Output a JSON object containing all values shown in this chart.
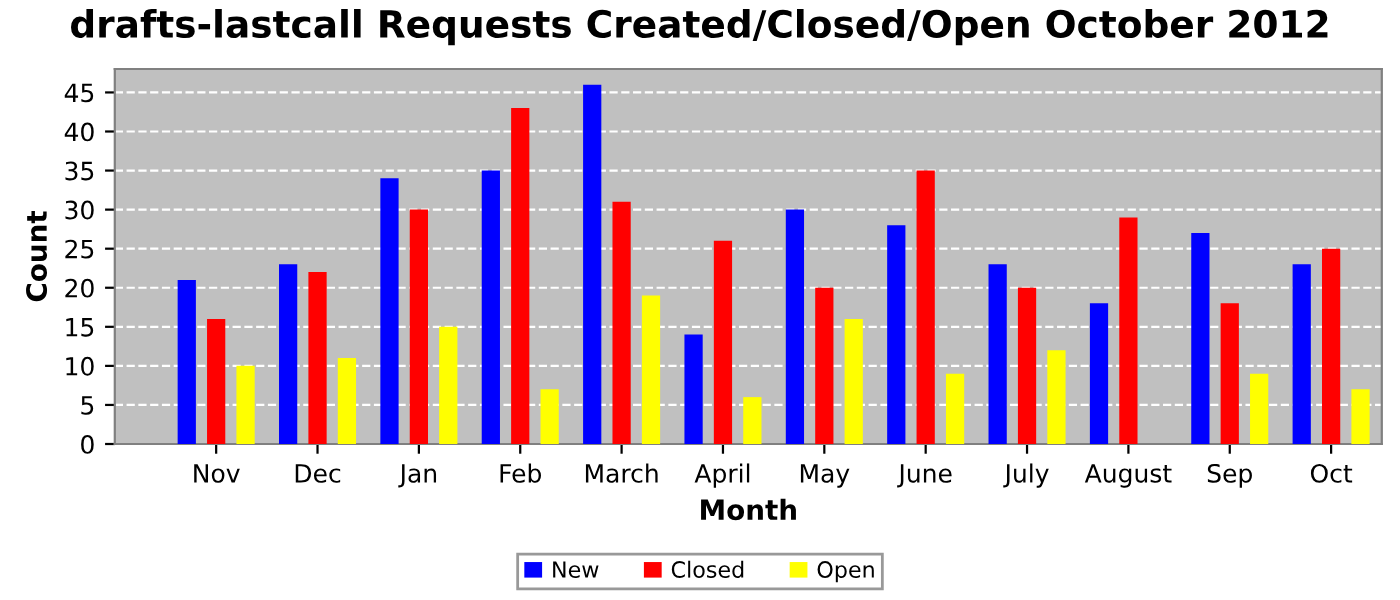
{
  "chart_data": {
    "type": "bar",
    "title": "drafts-lastcall Requests Created/Closed/Open October 2012",
    "xlabel": "Month",
    "ylabel": "Count",
    "categories": [
      "Nov",
      "Dec",
      "Jan",
      "Feb",
      "March",
      "April",
      "May",
      "June",
      "July",
      "August",
      "Sep",
      "Oct"
    ],
    "series": [
      {
        "name": "New",
        "color": "#0000ff",
        "values": [
          21,
          23,
          34,
          35,
          46,
          14,
          30,
          28,
          23,
          18,
          27,
          23
        ]
      },
      {
        "name": "Closed",
        "color": "#ff0000",
        "values": [
          16,
          22,
          30,
          43,
          31,
          26,
          20,
          35,
          20,
          29,
          18,
          25
        ]
      },
      {
        "name": "Open",
        "color": "#ffff00",
        "values": [
          10,
          11,
          15,
          7,
          19,
          6,
          16,
          9,
          12,
          0,
          9,
          7
        ]
      }
    ],
    "ylim": [
      0,
      48
    ],
    "yticks": [
      0,
      5,
      10,
      15,
      20,
      25,
      30,
      35,
      40,
      45
    ],
    "grid": "y",
    "legend": "bottom"
  }
}
